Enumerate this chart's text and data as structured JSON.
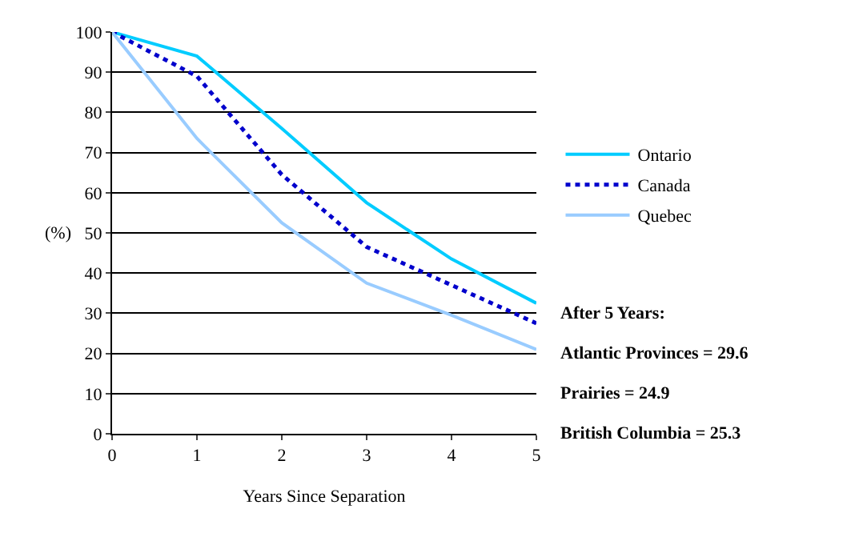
{
  "chart_data": {
    "type": "line",
    "xlabel": "Years Since Separation",
    "ylabel": "(%)",
    "x": [
      0,
      1,
      2,
      3,
      4,
      5
    ],
    "series": [
      {
        "name": "Ontario",
        "color": "#00ccff",
        "values": [
          100,
          94,
          76,
          57.5,
          43.5,
          32.5
        ],
        "line_style": "solid"
      },
      {
        "name": "Canada",
        "color": "#0000cc",
        "values": [
          100,
          89,
          64.5,
          46.5,
          37,
          27.5
        ],
        "line_style": "dotted"
      },
      {
        "name": "Quebec",
        "color": "#99ccff",
        "values": [
          100,
          73.5,
          52.5,
          37.5,
          29.5,
          21
        ],
        "line_style": "solid"
      }
    ],
    "xlim": [
      0,
      5
    ],
    "xticks": [
      0,
      1,
      2,
      3,
      4,
      5
    ],
    "ylim": [
      0,
      100
    ],
    "yticks": [
      0,
      10,
      20,
      30,
      40,
      50,
      60,
      70,
      80,
      90,
      100
    ],
    "grid": "y",
    "legend": "right",
    "marker": "none",
    "annotations": [
      "After 5 Years:",
      "Atlantic Provinces = 29.6",
      "Prairies = 24.9",
      "British Columbia = 25.3"
    ]
  }
}
